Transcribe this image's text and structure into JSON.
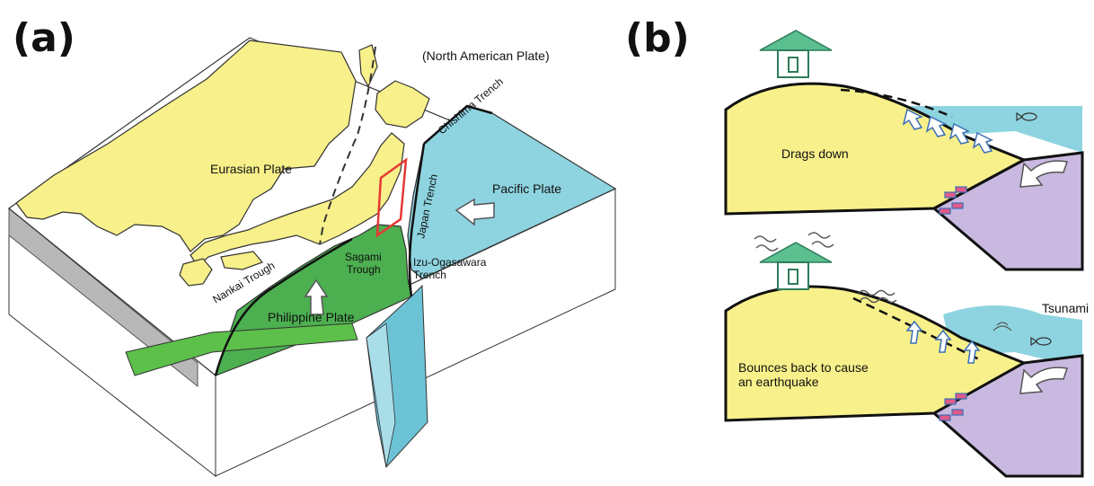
{
  "panel_a": {
    "label": "(a)",
    "plates": {
      "north_american": "(North American Plate)",
      "eurasian": "Eurasian Plate",
      "pacific": "Pacific Plate",
      "philippine": "Philippine Plate"
    },
    "features": {
      "sagami_line1": "Sagami",
      "sagami_line2": "Trough",
      "nankai": "Nankai Trough",
      "japan_trench": "Japan Trench",
      "chishima": "Chishima Trench",
      "izu_line1": "Izu-Ogasawara",
      "izu_line2": "Trench"
    }
  },
  "panel_b": {
    "label": "(b)",
    "top": {
      "caption": "Drags down"
    },
    "bottom": {
      "caption_line1": "Bounces back to cause",
      "caption_line2": "an earthquake",
      "tsunami": "Tsunami"
    }
  },
  "colors": {
    "land": "#f8f08a",
    "ocean": "#8ed4e0",
    "philippine_plate": "#4caf50",
    "pacific_slab": "#6cc3d5",
    "oceanic_plate_b": "#c9b9e0",
    "house": "#5bbf8f",
    "source_area": "#e53935"
  }
}
